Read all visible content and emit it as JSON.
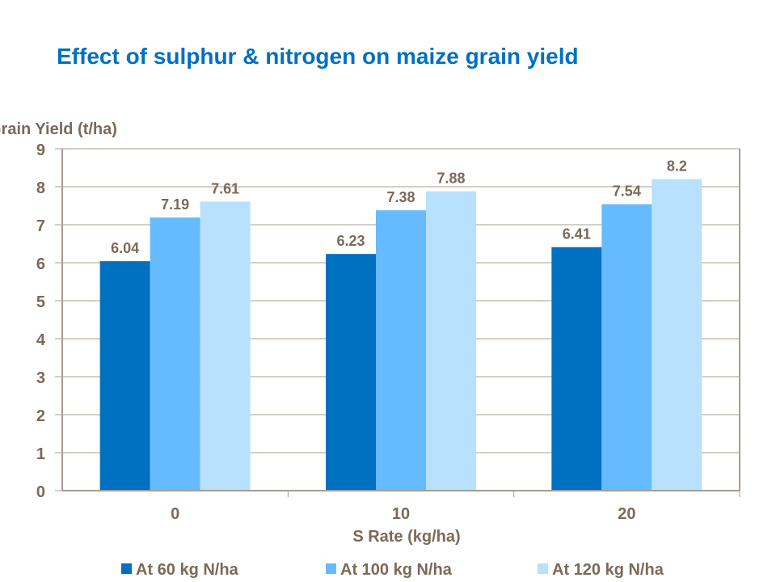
{
  "chart_data": {
    "type": "bar",
    "title": "Effect of sulphur & nitrogen on maize grain yield",
    "xlabel": "S Rate (kg/ha)",
    "ylabel": "Grain Yield (t/ha)",
    "categories": [
      "0",
      "10",
      "20"
    ],
    "ylim": [
      0,
      9
    ],
    "yticks": [
      0,
      1,
      2,
      3,
      4,
      5,
      6,
      7,
      8,
      9
    ],
    "grid": true,
    "legend_position": "bottom",
    "series": [
      {
        "name": "At 60 kg N/ha",
        "values": [
          6.04,
          6.23,
          6.41
        ],
        "labels": [
          "6.04",
          "6.23",
          "6.41"
        ],
        "color": "#0070C0"
      },
      {
        "name": "At 100 kg N/ha",
        "values": [
          7.19,
          7.38,
          7.54
        ],
        "labels": [
          "7.19",
          "7.38",
          "7.54"
        ],
        "color": "#66BBFF"
      },
      {
        "name": "At 120 kg N/ha",
        "values": [
          7.61,
          7.88,
          8.2
        ],
        "labels": [
          "7.61",
          "7.88",
          "8.2"
        ],
        "color": "#B8E0FF"
      }
    ],
    "colors": {
      "title": "#0070C0",
      "text": "#7A6A58",
      "axis": "#A89C90",
      "grid": "#A89C90"
    }
  }
}
